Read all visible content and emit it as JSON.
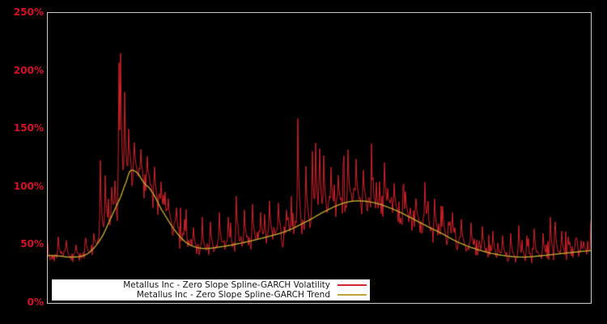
{
  "chart_data": {
    "type": "line",
    "title": "",
    "xlabel": "",
    "ylabel": "",
    "ylim": [
      0,
      250
    ],
    "yticks": [
      "0%",
      "50%",
      "100%",
      "150%",
      "200%",
      "250%"
    ],
    "x_tick_labels_visible": false,
    "grid": false,
    "legend_position": "bottom-left-inside",
    "colors": {
      "background": "#000000",
      "plot_border": "#cbcbcb",
      "tick_label": "#d61326",
      "legend_background": "#ffffff",
      "legend_text": "#141414"
    },
    "series": [
      {
        "name": "Metallus Inc - Zero Slope Spline-GARCH Volatility",
        "color": "#d5242c",
        "style": "noisy-line"
      },
      {
        "name": "Metallus Inc - Zero Slope Spline-GARCH Trend",
        "color": "#c0a535",
        "style": "smooth-line"
      }
    ],
    "trend_points": [
      [
        0.0,
        41
      ],
      [
        0.02,
        40.5
      ],
      [
        0.04,
        39.5
      ],
      [
        0.064,
        40.5
      ],
      [
        0.08,
        45
      ],
      [
        0.1,
        57
      ],
      [
        0.118,
        75
      ],
      [
        0.134,
        91
      ],
      [
        0.145,
        105
      ],
      [
        0.152,
        114
      ],
      [
        0.165,
        112
      ],
      [
        0.178,
        103
      ],
      [
        0.19,
        97
      ],
      [
        0.21,
        80
      ],
      [
        0.235,
        62
      ],
      [
        0.258,
        51
      ],
      [
        0.285,
        47
      ],
      [
        0.32,
        48.5
      ],
      [
        0.36,
        52
      ],
      [
        0.4,
        56.5
      ],
      [
        0.44,
        62
      ],
      [
        0.48,
        71
      ],
      [
        0.515,
        80
      ],
      [
        0.545,
        86
      ],
      [
        0.57,
        88
      ],
      [
        0.6,
        86.5
      ],
      [
        0.63,
        82
      ],
      [
        0.66,
        75.5
      ],
      [
        0.695,
        67
      ],
      [
        0.725,
        60
      ],
      [
        0.755,
        52.5
      ],
      [
        0.785,
        47
      ],
      [
        0.815,
        43
      ],
      [
        0.845,
        40.5
      ],
      [
        0.875,
        39.5
      ],
      [
        0.905,
        40.5
      ],
      [
        0.935,
        42
      ],
      [
        0.965,
        43.5
      ],
      [
        1.0,
        45
      ]
    ],
    "volatility_spikes": [
      [
        0.02,
        57
      ],
      [
        0.034,
        54
      ],
      [
        0.052,
        50
      ],
      [
        0.07,
        56
      ],
      [
        0.085,
        60
      ],
      [
        0.097,
        123
      ],
      [
        0.106,
        110
      ],
      [
        0.118,
        100
      ],
      [
        0.131,
        207
      ],
      [
        0.134,
        215
      ],
      [
        0.141,
        181
      ],
      [
        0.149,
        150
      ],
      [
        0.16,
        138
      ],
      [
        0.172,
        132
      ],
      [
        0.184,
        126
      ],
      [
        0.196,
        118
      ],
      [
        0.208,
        105
      ],
      [
        0.222,
        90
      ],
      [
        0.237,
        82
      ],
      [
        0.252,
        72
      ],
      [
        0.268,
        65
      ],
      [
        0.284,
        64
      ],
      [
        0.3,
        70
      ],
      [
        0.316,
        78
      ],
      [
        0.332,
        74
      ],
      [
        0.347,
        92
      ],
      [
        0.362,
        80
      ],
      [
        0.377,
        85
      ],
      [
        0.392,
        78
      ],
      [
        0.408,
        88
      ],
      [
        0.424,
        86
      ],
      [
        0.44,
        80
      ],
      [
        0.461,
        159
      ],
      [
        0.476,
        118
      ],
      [
        0.488,
        131
      ],
      [
        0.494,
        138
      ],
      [
        0.501,
        133
      ],
      [
        0.508,
        127
      ],
      [
        0.521,
        117
      ],
      [
        0.535,
        110
      ],
      [
        0.553,
        132
      ],
      [
        0.568,
        124
      ],
      [
        0.581,
        113
      ],
      [
        0.597,
        106
      ],
      [
        0.62,
        121
      ],
      [
        0.638,
        103
      ],
      [
        0.658,
        96
      ],
      [
        0.678,
        90
      ],
      [
        0.695,
        104
      ],
      [
        0.712,
        90
      ],
      [
        0.728,
        83
      ],
      [
        0.745,
        78
      ],
      [
        0.762,
        72
      ],
      [
        0.78,
        69
      ],
      [
        0.8,
        66
      ],
      [
        0.82,
        62
      ],
      [
        0.838,
        58
      ],
      [
        0.853,
        60
      ],
      [
        0.867,
        67
      ],
      [
        0.882,
        58
      ],
      [
        0.896,
        64
      ],
      [
        0.912,
        60
      ],
      [
        0.925,
        74
      ],
      [
        0.934,
        70
      ],
      [
        0.946,
        62
      ],
      [
        0.958,
        57
      ],
      [
        0.972,
        55
      ],
      [
        0.986,
        53
      ]
    ],
    "volatility_noise": {
      "seed": 7,
      "points": 672,
      "jitter": 0.13,
      "burst_prob": 0.26,
      "burst_scale": 0.3,
      "dip_prob": 0.1,
      "dip_scale": 0.12
    }
  },
  "legend": {
    "items": [
      {
        "label": "Metallus Inc - Zero Slope Spline-GARCH Volatility",
        "color": "#d5242c"
      },
      {
        "label": "Metallus Inc - Zero Slope Spline-GARCH Trend",
        "color": "#c0a535"
      }
    ]
  }
}
